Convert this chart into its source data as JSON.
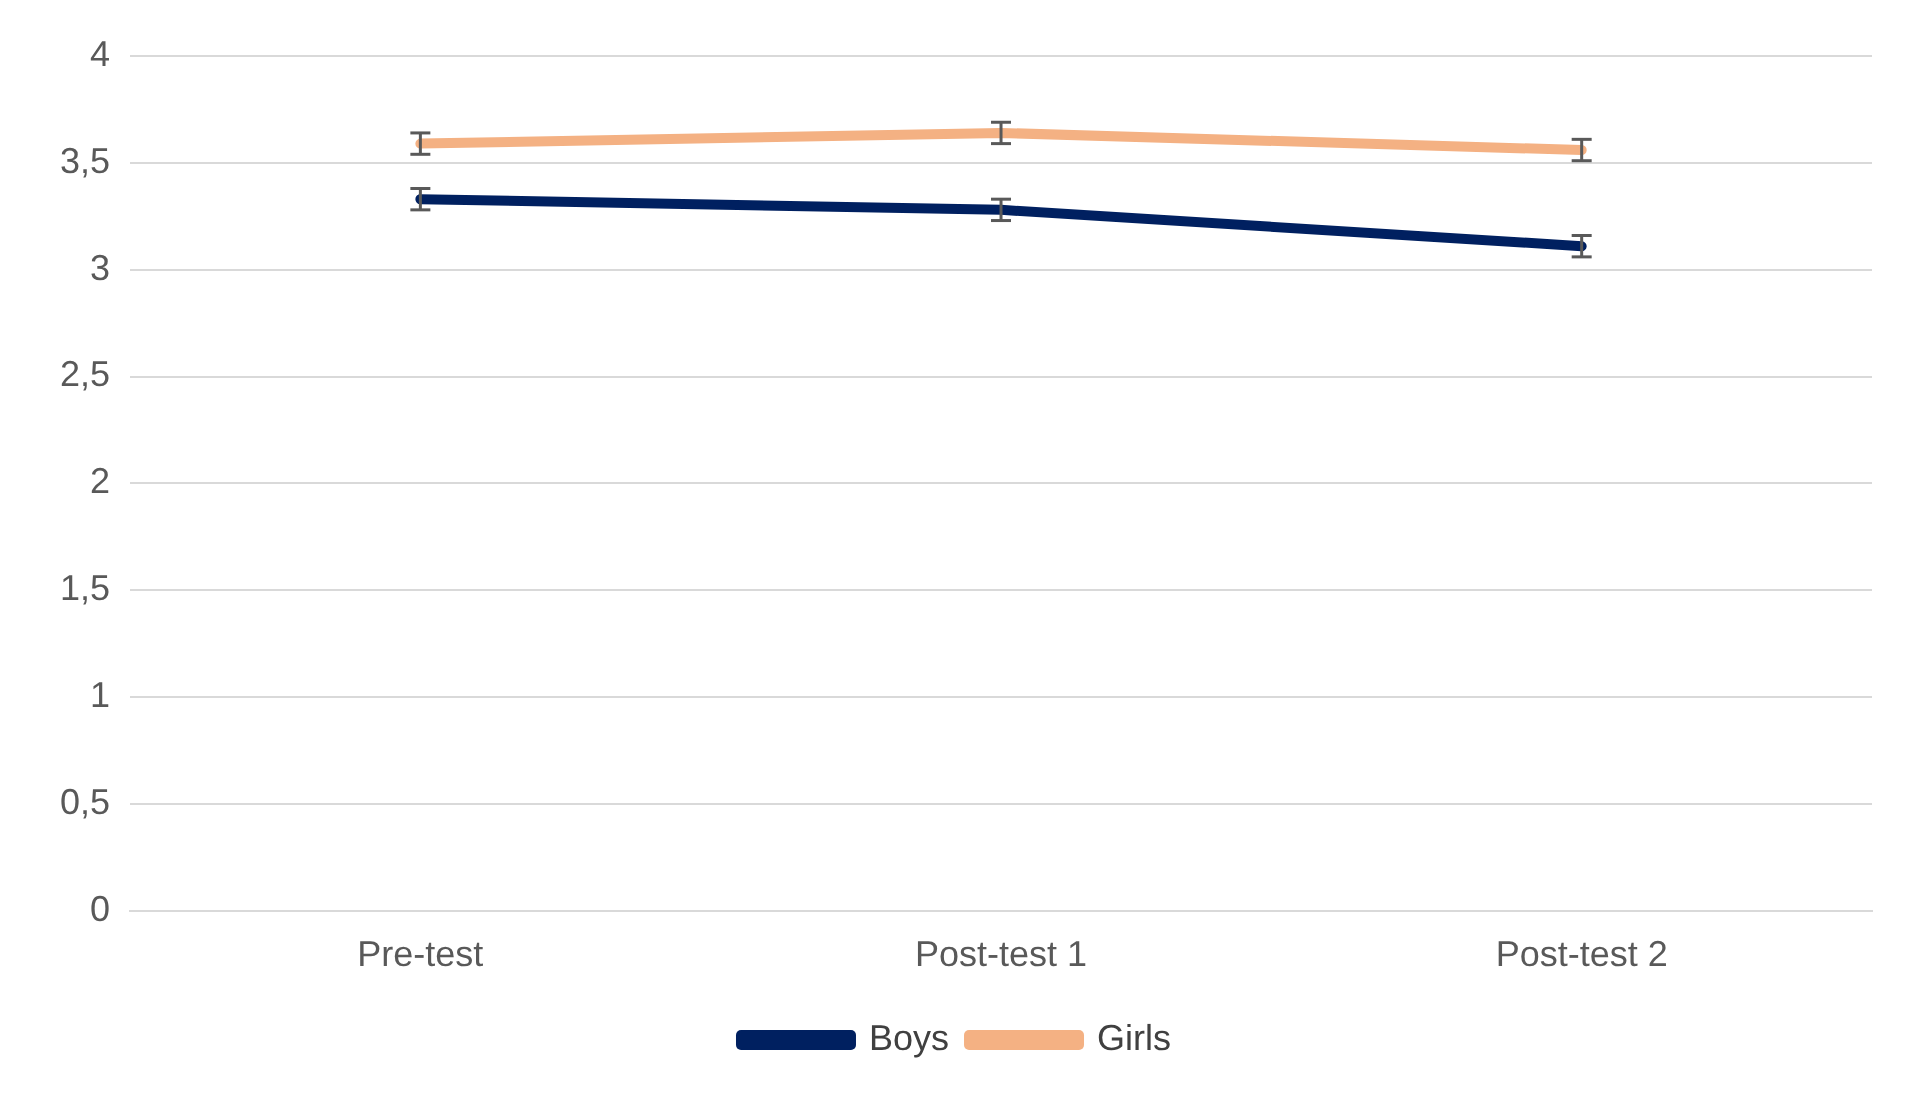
{
  "chart_data": {
    "type": "line",
    "categories": [
      "Pre-test",
      "Post-test 1",
      "Post-test 2"
    ],
    "series": [
      {
        "name": "Boys",
        "color": "#002060",
        "values": [
          3.33,
          3.28,
          3.11
        ],
        "errors": [
          0.05,
          0.05,
          0.05
        ]
      },
      {
        "name": "Girls",
        "color": "#f4b183",
        "values": [
          3.59,
          3.64,
          3.56
        ],
        "errors": [
          0.05,
          0.05,
          0.05
        ]
      }
    ],
    "ylim": [
      0,
      4
    ],
    "yticks": [
      0,
      {
        "value": 0.5,
        "label": "0,5"
      },
      1,
      {
        "value": 1.5,
        "label": "1,5"
      },
      2,
      {
        "value": 2.5,
        "label": "2,5"
      },
      3,
      {
        "value": 3.5,
        "label": "3,5"
      },
      4
    ],
    "grid": "y",
    "legend": "bottom",
    "marker": "none",
    "line_style": "solid"
  }
}
